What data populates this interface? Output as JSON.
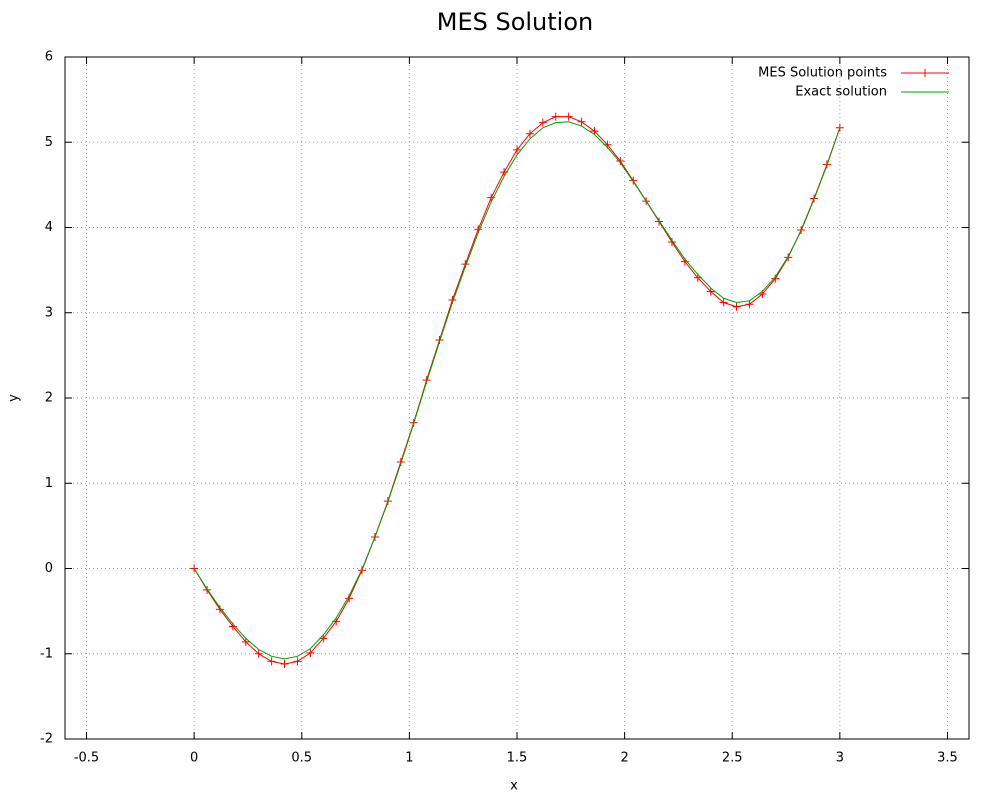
{
  "chart_data": {
    "type": "line",
    "title": "MES Solution",
    "x_label": "x",
    "y_label": "y",
    "x": [
      0,
      0.06,
      0.12,
      0.18,
      0.24,
      0.3,
      0.36,
      0.42,
      0.48,
      0.54,
      0.6,
      0.66,
      0.72,
      0.78,
      0.84,
      0.9,
      0.96,
      1.02,
      1.08,
      1.14,
      1.2,
      1.26,
      1.32,
      1.38,
      1.44,
      1.5,
      1.56,
      1.62,
      1.68,
      1.74,
      1.8,
      1.86,
      1.92,
      1.98,
      2.04,
      2.1,
      2.16,
      2.22,
      2.28,
      2.34,
      2.4,
      2.46,
      2.52,
      2.58,
      2.64,
      2.7,
      2.76,
      2.82,
      2.88,
      2.94,
      3
    ],
    "series": [
      {
        "name": "MES Solution points",
        "color": "#ff0000",
        "markers": true,
        "values": [
          0,
          -0.25,
          -0.48,
          -0.68,
          -0.86,
          -1.0,
          -1.09,
          -1.12,
          -1.09,
          -0.99,
          -0.82,
          -0.62,
          -0.35,
          -0.02,
          0.37,
          0.79,
          1.25,
          1.71,
          2.21,
          2.68,
          3.15,
          3.57,
          3.98,
          4.35,
          4.65,
          4.91,
          5.1,
          5.23,
          5.3,
          5.3,
          5.24,
          5.13,
          4.97,
          4.78,
          4.55,
          4.31,
          4.07,
          3.83,
          3.6,
          3.41,
          3.25,
          3.12,
          3.07,
          3.1,
          3.22,
          3.4,
          3.65,
          3.97,
          4.34,
          4.74,
          5.17
        ]
      },
      {
        "name": "Exact solution",
        "color": "#00a000",
        "markers": false,
        "values": [
          0,
          -0.24,
          -0.46,
          -0.65,
          -0.82,
          -0.95,
          -1.03,
          -1.06,
          -1.03,
          -0.94,
          -0.78,
          -0.58,
          -0.32,
          -0.01,
          0.37,
          0.78,
          1.23,
          1.7,
          2.19,
          2.66,
          3.12,
          3.54,
          3.94,
          4.3,
          4.6,
          4.85,
          5.04,
          5.17,
          5.23,
          5.24,
          5.19,
          5.09,
          4.94,
          4.76,
          4.54,
          4.31,
          4.08,
          3.85,
          3.63,
          3.45,
          3.29,
          3.17,
          3.12,
          3.14,
          3.25,
          3.42,
          3.66,
          3.96,
          4.33,
          4.73,
          5.17
        ]
      }
    ],
    "xlim": [
      -0.6,
      3.6
    ],
    "ylim": [
      -2,
      6
    ],
    "xticks": [
      -0.5,
      0,
      0.5,
      1,
      1.5,
      2,
      2.5,
      3,
      3.5
    ],
    "yticks": [
      -2,
      -1,
      0,
      1,
      2,
      3,
      4,
      5,
      6
    ],
    "grid": true,
    "legend": "top-right"
  }
}
